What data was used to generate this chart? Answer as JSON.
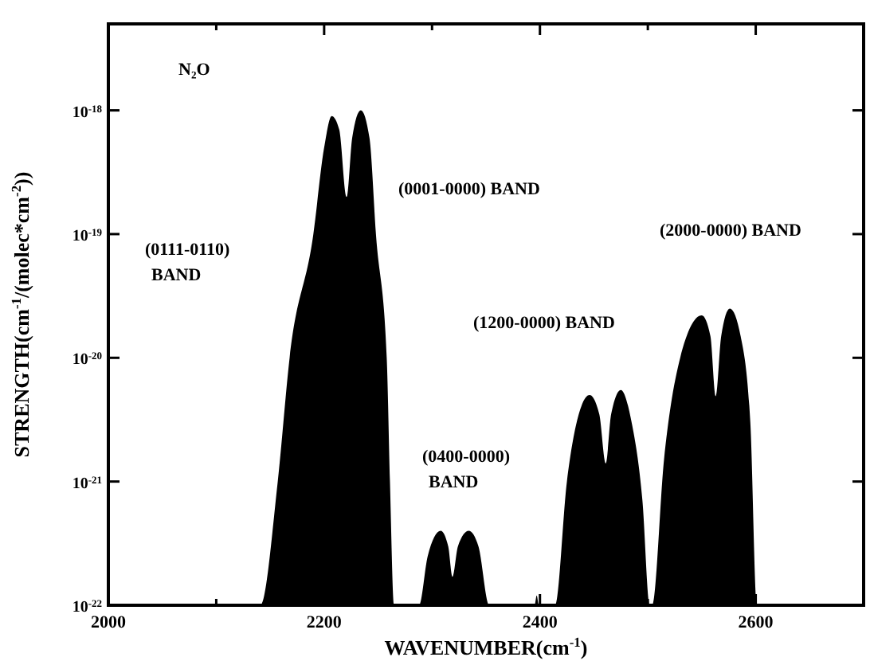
{
  "chart_data": {
    "type": "area",
    "xlabel": "WAVENUMBER(cm$^{-1}$)",
    "ylabel": "STRENGTH(cm$^{-1}$/(molec*cm$^{-2}$))",
    "log": "y",
    "xlim": [
      2000,
      2700
    ],
    "xticks": [
      2000,
      {
        "value": 2100,
        "label": null
      },
      2200,
      {
        "value": 2300,
        "label": null
      },
      2400,
      {
        "value": 2500,
        "label": null
      },
      2600,
      {
        "value": 2700,
        "label": null
      }
    ],
    "ylim": [
      1e-22,
      5e-18
    ],
    "yticks": [
      {
        "value": 1e-22,
        "label": "10$^{-22}$"
      },
      {
        "value": 1e-21,
        "label": "10$^{-21}$"
      },
      {
        "value": 1e-20,
        "label": "10$^{-20}$"
      },
      {
        "value": 1e-19,
        "label": "10$^{-19}$"
      },
      {
        "value": 1e-18,
        "label": "10$^{-18}$"
      }
    ],
    "grid": false,
    "series": [
      {
        "color": "#000000",
        "x": [
          2000,
          2141,
          2157,
          2168,
          2190,
          2200,
          2207,
          2214,
          2221,
          2226,
          2234,
          2242,
          2248,
          2258,
          2261,
          2265,
          2288,
          2296,
          2308,
          2315,
          2319,
          2324,
          2334,
          2343,
          2353,
          2395,
          2397,
          2399,
          2414,
          2425,
          2436,
          2446,
          2455,
          2461,
          2466,
          2475,
          2485,
          2495,
          2502,
          2504,
          2515,
          2530,
          2550,
          2558,
          2563,
          2568,
          2576,
          2586,
          2595,
          2601,
          2700
        ],
        "values": [
          1e-22,
          1e-22,
          1e-21,
          1e-20,
          1e-19,
          5e-19,
          9e-19,
          7e-19,
          2e-19,
          6e-19,
          1e-18,
          6e-19,
          1e-19,
          1e-20,
          1e-21,
          1e-22,
          1e-22,
          2.5e-22,
          4e-22,
          3e-22,
          1.7e-22,
          3e-22,
          4e-22,
          3e-22,
          1e-22,
          1e-22,
          1.2e-22,
          1e-22,
          1e-22,
          1e-21,
          3.5e-21,
          5e-21,
          3.5e-21,
          1.4e-21,
          3.5e-21,
          5.5e-21,
          3e-21,
          7e-22,
          1e-22,
          1e-22,
          1.5e-21,
          1e-20,
          2.2e-20,
          1.5e-20,
          4.9e-21,
          1.5e-20,
          2.5e-20,
          1.5e-20,
          3e-21,
          1e-22,
          1e-22
        ]
      }
    ],
    "annotations": [
      "N₂O",
      "(0111-0110)\nBAND",
      "(0001-0000) BAND",
      "(0400-0000)\nBAND",
      "(1200-0000) BAND",
      "(2000-0000) BAND"
    ]
  }
}
